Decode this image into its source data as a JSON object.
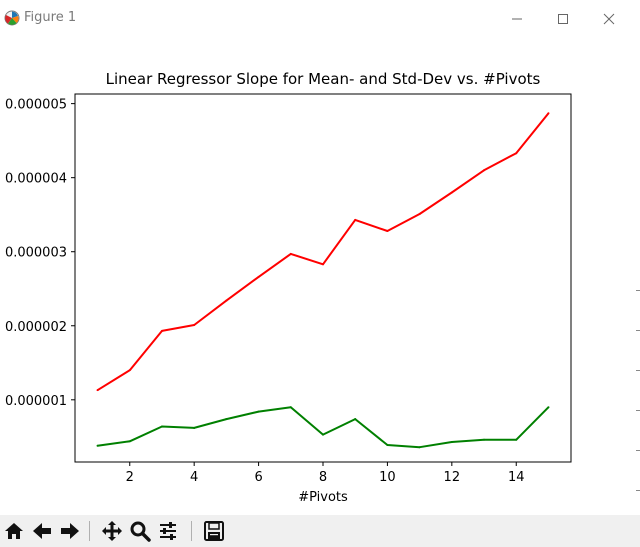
{
  "window": {
    "title": "Figure 1",
    "icons": {
      "app": "matplotlib-logo-icon",
      "minimize": "minimize-icon",
      "maximize": "maximize-icon",
      "close": "close-icon"
    }
  },
  "toolbar": {
    "buttons": [
      {
        "name": "home-icon"
      },
      {
        "name": "back-arrow-icon"
      },
      {
        "name": "forward-arrow-icon"
      },
      {
        "name": "pan-move-icon"
      },
      {
        "name": "zoom-magnifier-icon"
      },
      {
        "name": "configure-subplots-icon"
      },
      {
        "name": "save-floppy-icon"
      }
    ]
  },
  "chart_data": {
    "type": "line",
    "title": "Linear Regressor Slope for Mean- and Std-Dev vs. #Pivots",
    "xlabel": "#Pivots",
    "ylabel": "",
    "x": [
      1,
      2,
      3,
      4,
      5,
      6,
      7,
      8,
      9,
      10,
      11,
      12,
      13,
      14,
      15
    ],
    "xticks": [
      2,
      4,
      6,
      8,
      10,
      12,
      14
    ],
    "xtick_labels": [
      "2",
      "4",
      "6",
      "8",
      "10",
      "12",
      "14"
    ],
    "yticks": [
      1e-06,
      2e-06,
      3e-06,
      4e-06,
      5e-06
    ],
    "ytick_labels": [
      "0.000001",
      "0.000002",
      "0.000003",
      "0.000004",
      "0.000005"
    ],
    "xlim": [
      0.3,
      15.7
    ],
    "ylim": [
      1.6e-07,
      5.13e-06
    ],
    "grid": false,
    "series": [
      {
        "color": "#ff0000",
        "values": [
          1.13e-06,
          1.4e-06,
          1.93e-06,
          2.01e-06,
          2.34e-06,
          2.66e-06,
          2.97e-06,
          2.83e-06,
          3.43e-06,
          3.28e-06,
          3.51e-06,
          3.8e-06,
          4.1e-06,
          4.33e-06,
          4.87e-06
        ]
      },
      {
        "color": "#008000",
        "values": [
          3.8e-07,
          4.4e-07,
          6.4e-07,
          6.2e-07,
          7.4e-07,
          8.4e-07,
          9e-07,
          5.3e-07,
          7.4e-07,
          3.9e-07,
          3.6e-07,
          4.3e-07,
          4.6e-07,
          4.6e-07,
          9e-07
        ]
      }
    ]
  }
}
